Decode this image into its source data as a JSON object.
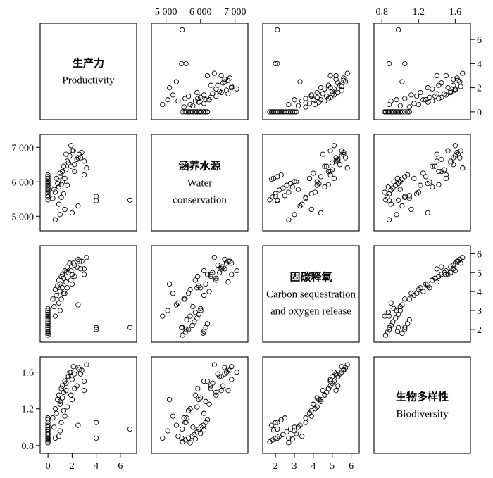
{
  "chart_data": {
    "type": "scatter",
    "layout": "scatterplot-matrix",
    "marker": "open-circle",
    "variables": [
      {
        "id": "productivity",
        "name_zh": "生产力",
        "name_en_lines": [
          "Productivity"
        ],
        "range": [
          -0.3,
          7.0
        ],
        "ticks": [
          0,
          2,
          4,
          6
        ],
        "tick_labels": [
          "0",
          "2",
          "4",
          "6"
        ]
      },
      {
        "id": "water",
        "name_zh": "涵养水源",
        "name_en_lines": [
          "Water",
          "conservation"
        ],
        "range": [
          4700,
          7250
        ],
        "ticks": [
          5000,
          6000,
          7000
        ],
        "tick_labels": [
          "5 000",
          "6 000",
          "7 000"
        ]
      },
      {
        "id": "carbon",
        "name_zh": "固碳释氧",
        "name_en_lines": [
          "Carbon sequestration",
          "and oxygen release"
        ],
        "range": [
          1.55,
          6.2
        ],
        "ticks": [
          2,
          3,
          4,
          5,
          6
        ],
        "tick_labels": [
          "2",
          "3",
          "4",
          "5",
          "6"
        ]
      },
      {
        "id": "biodiversity",
        "name_zh": "生物多样性",
        "name_en_lines": [
          "Biodiversity"
        ],
        "range": [
          0.76,
          1.72
        ],
        "ticks": [
          0.8,
          1.2,
          1.6
        ],
        "tick_labels": [
          "0.8",
          "1.2",
          "1.6"
        ]
      }
    ],
    "samples": {
      "productivity": [
        0,
        0,
        0,
        0,
        0,
        0,
        0,
        0,
        0,
        0,
        0,
        0,
        0,
        0,
        0,
        0,
        0.4,
        0.6,
        0.8,
        0.9,
        1.0,
        1.1,
        1.2,
        1.3,
        1.4,
        1.5,
        1.6,
        1.8,
        2.0,
        2.2,
        2.5,
        2.8,
        3.0,
        3.2,
        0.5,
        0.7,
        1.0,
        1.2,
        1.5,
        1.7,
        1.9,
        2.1,
        2.4,
        2.6,
        0.9,
        1.1,
        1.3,
        1.6,
        1.9,
        2.2,
        2.7,
        3.0,
        1.4,
        2.0,
        0.6,
        1.0,
        2.5,
        4.0,
        4.0,
        6.8
      ],
      "water": [
        5480,
        5560,
        5650,
        5760,
        5820,
        5900,
        5950,
        6010,
        6080,
        6150,
        6200,
        5600,
        5700,
        5850,
        6000,
        6100,
        5520,
        5700,
        5950,
        5850,
        6150,
        5920,
        6300,
        6450,
        6100,
        6350,
        6600,
        6750,
        6900,
        6500,
        6700,
        6850,
        6600,
        6400,
        5780,
        6100,
        6250,
        6000,
        6800,
        6550,
        7050,
        6900,
        6650,
        6800,
        5350,
        5550,
        5650,
        5900,
        6450,
        6300,
        6700,
        6200,
        5200,
        5100,
        4900,
        5050,
        5300,
        5580,
        5450,
        5470
      ],
      "carbon": [
        1.7,
        1.85,
        2.0,
        2.2,
        2.4,
        2.6,
        2.8,
        3.0,
        1.8,
        2.1,
        2.3,
        2.5,
        2.7,
        2.9,
        3.1,
        1.9,
        3.6,
        4.1,
        4.3,
        4.6,
        4.4,
        4.8,
        4.9,
        4.7,
        5.1,
        5.0,
        5.3,
        5.5,
        4.9,
        5.4,
        5.7,
        5.6,
        5.2,
        5.8,
        3.2,
        3.8,
        4.0,
        4.2,
        4.5,
        5.0,
        5.1,
        5.5,
        5.3,
        5.6,
        3.4,
        3.6,
        3.9,
        4.2,
        4.6,
        4.8,
        5.2,
        4.9,
        3.9,
        4.4,
        2.7,
        3.0,
        3.3,
        2.0,
        2.1,
        2.1
      ],
      "biodiversity": [
        0.84,
        0.86,
        0.88,
        0.9,
        0.92,
        0.95,
        0.98,
        1.0,
        1.02,
        1.05,
        1.08,
        1.1,
        0.83,
        0.87,
        0.93,
        0.97,
        1.1,
        1.2,
        1.3,
        1.35,
        1.28,
        1.42,
        1.45,
        1.38,
        1.5,
        1.48,
        1.55,
        1.6,
        1.52,
        1.58,
        1.65,
        1.62,
        1.4,
        1.68,
        1.0,
        1.15,
        1.25,
        1.32,
        1.4,
        1.55,
        1.6,
        1.66,
        1.45,
        1.63,
        0.9,
        1.05,
        1.18,
        1.22,
        1.35,
        1.42,
        1.58,
        1.5,
        1.12,
        1.3,
        0.88,
        0.96,
        1.02,
        1.05,
        0.88,
        0.98
      ]
    }
  }
}
